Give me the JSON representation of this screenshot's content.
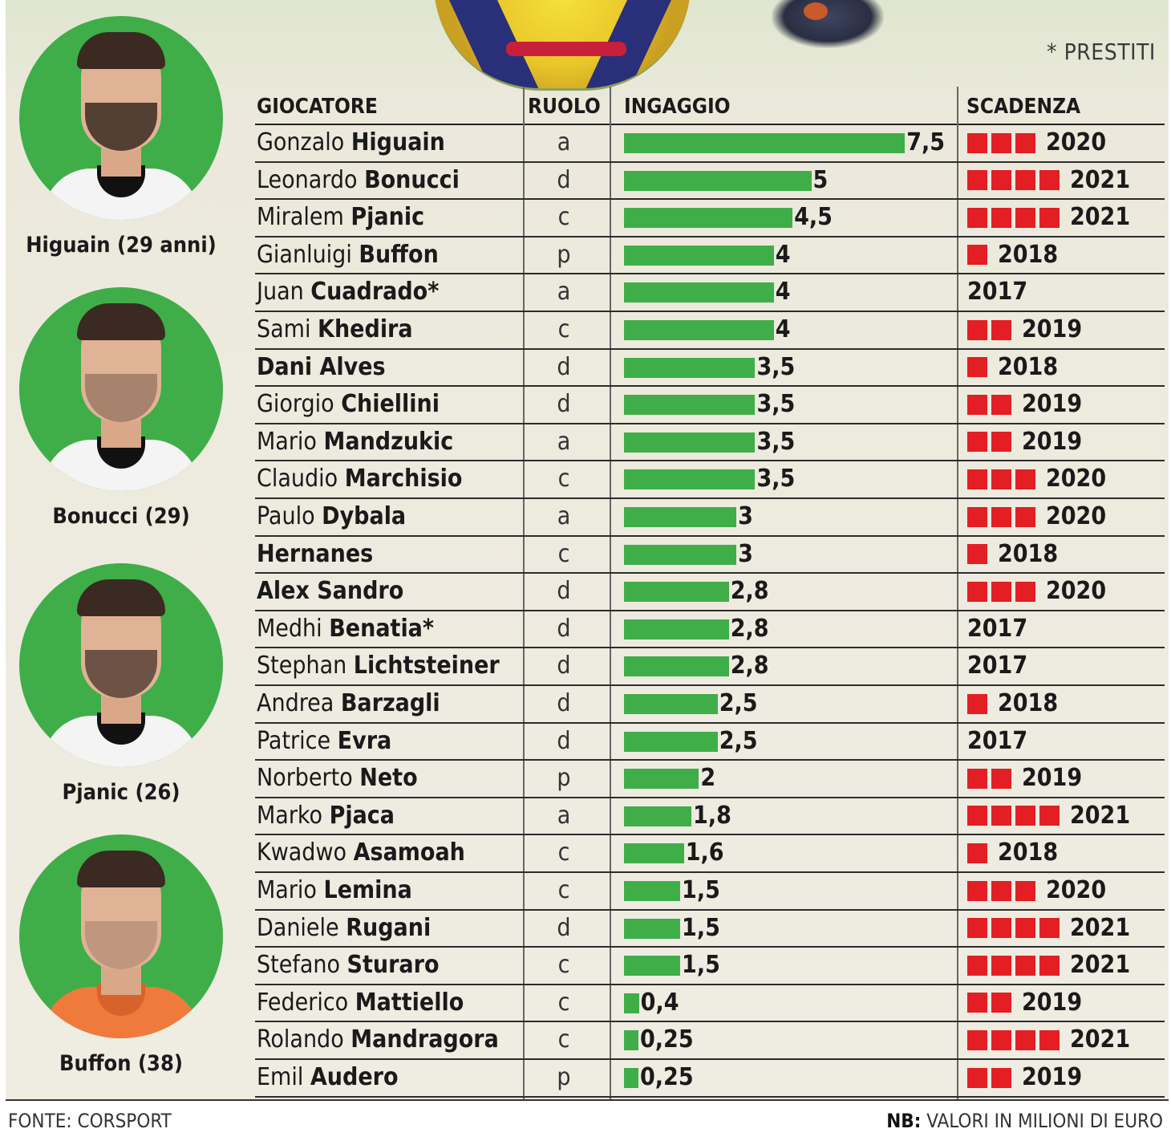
{
  "legend_note": "* PRESTITI",
  "portraits": [
    {
      "caption": "Higuain (29 anni)",
      "icon": "player-photo-icon"
    },
    {
      "caption": "Bonucci (29)",
      "icon": "player-photo-icon"
    },
    {
      "caption": "Pjanic (26)",
      "icon": "player-photo-icon"
    },
    {
      "caption": "Buffon (38)",
      "icon": "goalkeeper-photo-icon"
    }
  ],
  "headers": {
    "player": "GIOCATORE",
    "role": "RUOLO",
    "salary": "INGAGGIO",
    "expiry": "SCADENZA"
  },
  "footer": {
    "source": "FONTE: CORSPORT",
    "note_label": "NB:",
    "note_text": " VALORI IN MILIONI DI EURO"
  },
  "colors": {
    "bar": "#3fae49",
    "year_square": "#e31e24",
    "portrait_bg": "#3fae49"
  },
  "chart_data": {
    "type": "bar",
    "title": "",
    "xlabel": "",
    "ylabel": "",
    "categories": [
      "Gonzalo Higuain",
      "Leonardo Bonucci",
      "Miralem Pjanic",
      "Gianluigi Buffon",
      "Juan Cuadrado*",
      "Sami Khedira",
      "Dani Alves",
      "Giorgio Chiellini",
      "Mario Mandzukic",
      "Claudio Marchisio",
      "Paulo Dybala",
      "Hernanes",
      "Alex Sandro",
      "Medhi Benatia*",
      "Stephan Lichtsteiner",
      "Andrea Barzagli",
      "Patrice Evra",
      "Norberto Neto",
      "Marko Pjaca",
      "Kwadwo Asamoah",
      "Mario Lemina",
      "Daniele Rugani",
      "Stefano Sturaro",
      "Federico Mattiello",
      "Rolando Mandragora",
      "Emil Audero"
    ],
    "xlim": [
      0,
      7.5
    ],
    "rows": [
      {
        "first": "Gonzalo ",
        "last": "Higuain",
        "role": "a",
        "value": 7.5,
        "label": "7,5",
        "years": 3,
        "expiry": "2020"
      },
      {
        "first": "Leonardo ",
        "last": "Bonucci",
        "role": "d",
        "value": 5,
        "label": "5",
        "years": 4,
        "expiry": "2021"
      },
      {
        "first": "Miralem ",
        "last": "Pjanic",
        "role": "c",
        "value": 4.5,
        "label": "4,5",
        "years": 4,
        "expiry": "2021"
      },
      {
        "first": "Gianluigi ",
        "last": "Buffon",
        "role": "p",
        "value": 4,
        "label": "4",
        "years": 1,
        "expiry": "2018"
      },
      {
        "first": "Juan ",
        "last": "Cuadrado*",
        "role": "a",
        "value": 4,
        "label": "4",
        "years": 0,
        "expiry": "2017"
      },
      {
        "first": "Sami ",
        "last": "Khedira",
        "role": "c",
        "value": 4,
        "label": "4",
        "years": 2,
        "expiry": "2019"
      },
      {
        "first": "",
        "last": "Dani Alves",
        "role": "d",
        "value": 3.5,
        "label": "3,5",
        "years": 1,
        "expiry": "2018"
      },
      {
        "first": "Giorgio ",
        "last": "Chiellini",
        "role": "d",
        "value": 3.5,
        "label": "3,5",
        "years": 2,
        "expiry": "2019"
      },
      {
        "first": "Mario ",
        "last": "Mandzukic",
        "role": "a",
        "value": 3.5,
        "label": "3,5",
        "years": 2,
        "expiry": "2019"
      },
      {
        "first": "Claudio ",
        "last": "Marchisio",
        "role": "c",
        "value": 3.5,
        "label": "3,5",
        "years": 3,
        "expiry": "2020"
      },
      {
        "first": "Paulo ",
        "last": "Dybala",
        "role": "a",
        "value": 3,
        "label": "3",
        "years": 3,
        "expiry": "2020"
      },
      {
        "first": "",
        "last": "Hernanes",
        "role": "c",
        "value": 3,
        "label": "3",
        "years": 1,
        "expiry": "2018"
      },
      {
        "first": "",
        "last": "Alex Sandro",
        "role": "d",
        "value": 2.8,
        "label": "2,8",
        "years": 3,
        "expiry": "2020"
      },
      {
        "first": "Medhi ",
        "last": "Benatia*",
        "role": "d",
        "value": 2.8,
        "label": "2,8",
        "years": 0,
        "expiry": "2017"
      },
      {
        "first": "Stephan ",
        "last": "Lichtsteiner",
        "role": "d",
        "value": 2.8,
        "label": "2,8",
        "years": 0,
        "expiry": "2017"
      },
      {
        "first": "Andrea ",
        "last": "Barzagli",
        "role": "d",
        "value": 2.5,
        "label": "2,5",
        "years": 1,
        "expiry": "2018"
      },
      {
        "first": "Patrice ",
        "last": "Evra",
        "role": "d",
        "value": 2.5,
        "label": "2,5",
        "years": 0,
        "expiry": "2017"
      },
      {
        "first": "Norberto ",
        "last": "Neto",
        "role": "p",
        "value": 2,
        "label": "2",
        "years": 2,
        "expiry": "2019"
      },
      {
        "first": "Marko ",
        "last": "Pjaca",
        "role": "a",
        "value": 1.8,
        "label": "1,8",
        "years": 4,
        "expiry": "2021"
      },
      {
        "first": "Kwadwo ",
        "last": "Asamoah",
        "role": "c",
        "value": 1.6,
        "label": "1,6",
        "years": 1,
        "expiry": "2018"
      },
      {
        "first": "Mario ",
        "last": "Lemina",
        "role": "c",
        "value": 1.5,
        "label": "1,5",
        "years": 3,
        "expiry": "2020"
      },
      {
        "first": "Daniele ",
        "last": "Rugani",
        "role": "d",
        "value": 1.5,
        "label": "1,5",
        "years": 4,
        "expiry": "2021"
      },
      {
        "first": "Stefano ",
        "last": "Sturaro",
        "role": "c",
        "value": 1.5,
        "label": "1,5",
        "years": 4,
        "expiry": "2021"
      },
      {
        "first": "Federico ",
        "last": "Mattiello",
        "role": "c",
        "value": 0.4,
        "label": "0,4",
        "years": 2,
        "expiry": "2019"
      },
      {
        "first": "Rolando ",
        "last": "Mandragora",
        "role": "c",
        "value": 0.25,
        "label": "0,25",
        "years": 4,
        "expiry": "2021"
      },
      {
        "first": "Emil ",
        "last": "Audero",
        "role": "p",
        "value": 0.25,
        "label": "0,25",
        "years": 2,
        "expiry": "2019"
      }
    ]
  }
}
